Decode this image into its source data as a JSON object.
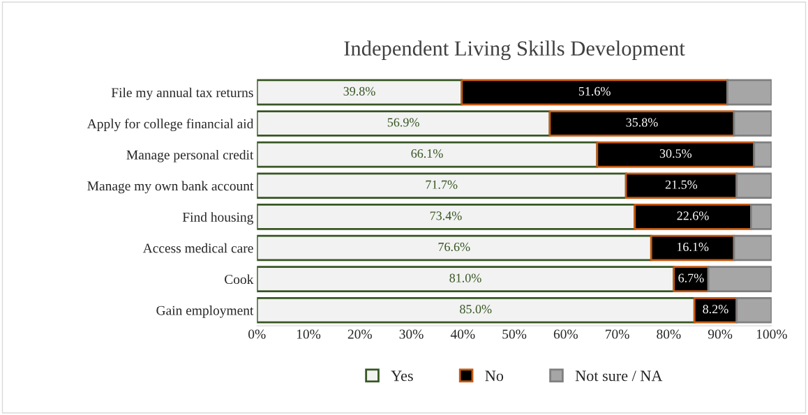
{
  "chart_data": {
    "type": "bar",
    "orientation": "horizontal",
    "stacked": true,
    "title": "Independent Living Skills Development",
    "categories": [
      "File my annual tax returns",
      "Apply for college financial aid",
      "Manage personal credit",
      "Manage my own bank account",
      "Find housing",
      "Access medical care",
      "Cook",
      "Gain employment"
    ],
    "series": [
      {
        "name": "Yes",
        "color": "#f2f2f2",
        "values": [
          39.8,
          56.9,
          66.1,
          71.7,
          73.4,
          76.6,
          81.0,
          85.0
        ],
        "value_labels": [
          "39.8%",
          "56.9%",
          "66.1%",
          "71.7%",
          "73.4%",
          "76.6%",
          "81.0%",
          "85.0%"
        ]
      },
      {
        "name": "No",
        "color": "#000000",
        "values": [
          51.6,
          35.8,
          30.5,
          21.5,
          22.6,
          16.1,
          6.7,
          8.2
        ],
        "value_labels": [
          "51.6%",
          "35.8%",
          "30.5%",
          "21.5%",
          "22.6%",
          "16.1%",
          "6.7%",
          "8.2%"
        ]
      },
      {
        "name": "Not sure / NA",
        "color": "#a6a6a6",
        "values": [
          8.6,
          7.3,
          3.4,
          6.8,
          4.0,
          7.3,
          12.3,
          6.8
        ]
      }
    ],
    "xlim": [
      0,
      100
    ],
    "xticks": [
      {
        "value": 0,
        "label": "0%"
      },
      {
        "value": 10,
        "label": "10%"
      },
      {
        "value": 20,
        "label": "20%"
      },
      {
        "value": 30,
        "label": "30%"
      },
      {
        "value": 40,
        "label": "40%"
      },
      {
        "value": 50,
        "label": "50%"
      },
      {
        "value": 60,
        "label": "60%"
      },
      {
        "value": 70,
        "label": "70%"
      },
      {
        "value": 80,
        "label": "80%"
      },
      {
        "value": 90,
        "label": "90%"
      },
      {
        "value": 100,
        "label": "100%"
      }
    ],
    "legend": "bottom",
    "grid": false
  }
}
